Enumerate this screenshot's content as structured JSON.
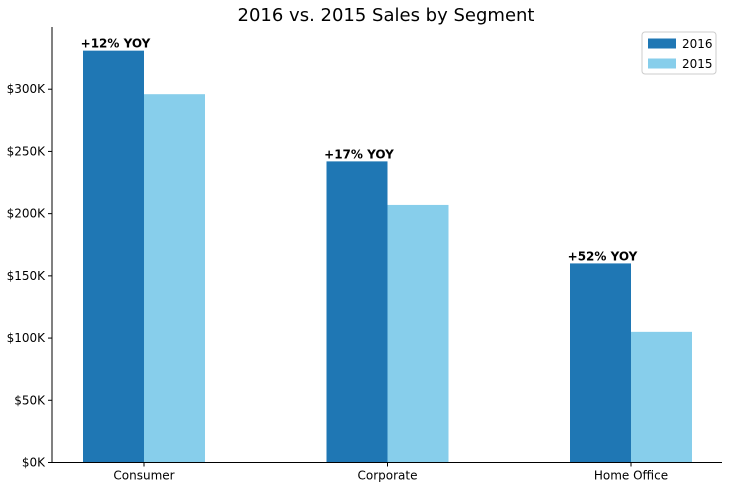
{
  "chart_data": {
    "type": "bar",
    "title": "2016 vs. 2015 Sales by Segment",
    "xlabel": "",
    "ylabel": "",
    "categories": [
      "Consumer",
      "Corporate",
      "Home Office"
    ],
    "series": [
      {
        "name": "2016",
        "color": "#1f77b4",
        "values": [
          331000,
          242000,
          160000
        ]
      },
      {
        "name": "2015",
        "color": "#87ceeb",
        "values": [
          296000,
          207000,
          105000
        ]
      }
    ],
    "bar_labels": [
      "+12% YOY",
      "+17% YOY",
      "+52% YOY"
    ],
    "ylim": [
      0,
      350000
    ],
    "yticks": [
      0,
      50000,
      100000,
      150000,
      200000,
      250000,
      300000
    ],
    "ytick_labels": [
      "$0K",
      "$50K",
      "$100K",
      "$150K",
      "$200K",
      "$250K",
      "$300K"
    ],
    "grid": false,
    "legend": "top-right"
  }
}
